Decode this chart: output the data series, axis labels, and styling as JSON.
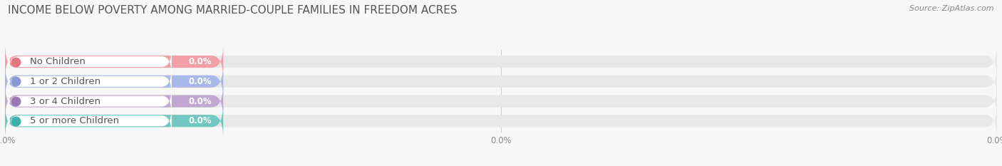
{
  "title": "INCOME BELOW POVERTY AMONG MARRIED-COUPLE FAMILIES IN FREEDOM ACRES",
  "source": "Source: ZipAtlas.com",
  "categories": [
    "No Children",
    "1 or 2 Children",
    "3 or 4 Children",
    "5 or more Children"
  ],
  "values": [
    0.0,
    0.0,
    0.0,
    0.0
  ],
  "bar_colors": [
    "#f2a0a8",
    "#a8b8e8",
    "#c0a8d0",
    "#70c8c0"
  ],
  "dot_colors": [
    "#e07880",
    "#8898d0",
    "#9878b0",
    "#3db0a8"
  ],
  "background_color": "#f7f7f7",
  "bar_bg_color": "#e8e8e8",
  "white_label_bg": "#ffffff",
  "title_fontsize": 11,
  "label_fontsize": 9.5,
  "value_fontsize": 8.5,
  "source_fontsize": 8
}
